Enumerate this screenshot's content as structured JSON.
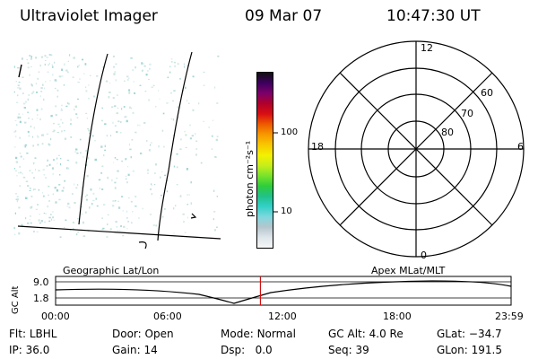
{
  "header": {
    "instrument": "Ultraviolet Imager",
    "date": "09 Mar 07",
    "time": "10:47:30 UT"
  },
  "colorbar": {
    "unit_label": "photon cm⁻²s⁻¹",
    "tick_labels": [
      "100",
      "10"
    ],
    "colors": [
      "#f7f7f7",
      "#dde6ea",
      "#b6c5cd",
      "#7fd8df",
      "#33d0c8",
      "#21c18a",
      "#2fcd3a",
      "#7ae32b",
      "#c8ee1a",
      "#f4f000",
      "#f8c700",
      "#f89800",
      "#ee5a00",
      "#d90e12",
      "#b0002a",
      "#7c006a",
      "#3d005f",
      "#111111"
    ]
  },
  "polar_plot": {
    "clock_labels": [
      "12",
      "18",
      "6",
      "0"
    ],
    "lat_labels": [
      "60",
      "70",
      "80"
    ]
  },
  "timeline": {
    "left_title": "Geographic Lat/Lon",
    "right_title": "Apex MLat/MLT",
    "axis_label": "GC Alt",
    "ytick_top": "9.0",
    "ytick_bottom": "1.8",
    "time_ticks": [
      "00:00",
      "06:00",
      "12:00",
      "18:00",
      "23:59"
    ],
    "marker_fraction": 0.4497,
    "marker_color": "#d01010"
  },
  "footer": {
    "row1": [
      {
        "key": "Flt:",
        "val": "LBHL"
      },
      {
        "key": "Door:",
        "val": "Open"
      },
      {
        "key": "Mode:",
        "val": "Normal"
      },
      {
        "key": "GC Alt:",
        "val": "4.0 Re"
      },
      {
        "key": "GLat:",
        "val": "−34.7"
      }
    ],
    "row2": [
      {
        "key": "IP:",
        "val": "36.0"
      },
      {
        "key": "Gain:",
        "val": "14"
      },
      {
        "key": "Dsp:",
        "val": "0.0"
      },
      {
        "key": "Seq:",
        "val": "39"
      },
      {
        "key": "GLon:",
        "val": "191.5"
      }
    ]
  }
}
